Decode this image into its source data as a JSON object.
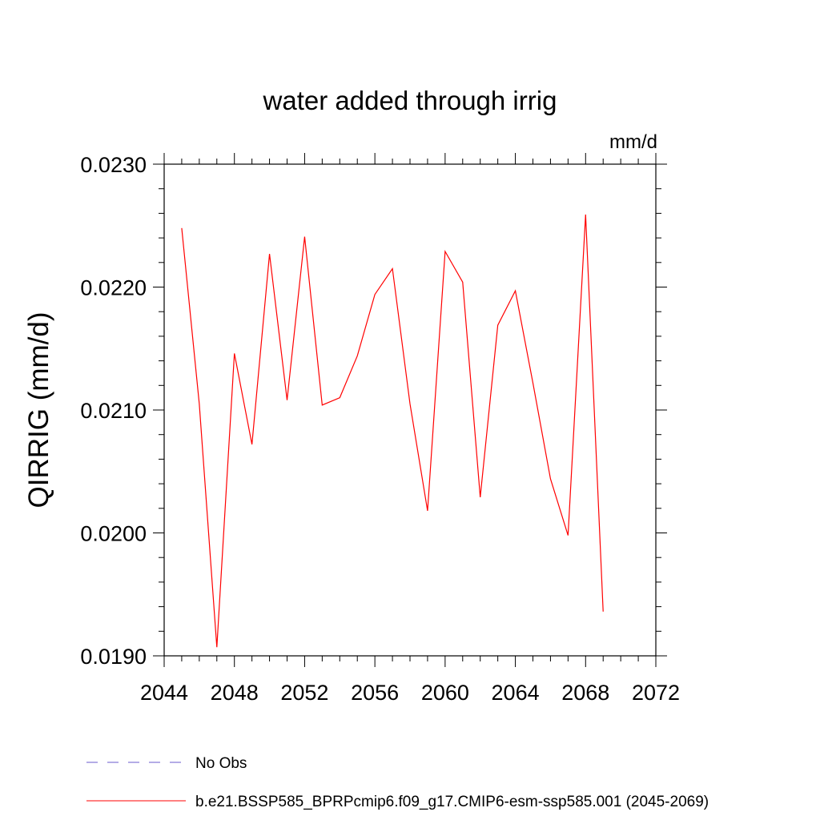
{
  "chart_data": {
    "type": "line",
    "title": "water added through irrig",
    "units_label": "mm/d",
    "xlabel": "",
    "ylabel": "QIRRIG  (mm/d)",
    "xlim": [
      2044,
      2072
    ],
    "ylim": [
      0.019,
      0.023
    ],
    "x_major_ticks": [
      2044,
      2048,
      2052,
      2056,
      2060,
      2064,
      2068,
      2072
    ],
    "x_tick_labels": [
      "2044",
      "2048",
      "2052",
      "2056",
      "2060",
      "2064",
      "2068",
      "2072"
    ],
    "y_major_ticks": [
      0.019,
      0.02,
      0.021,
      0.022,
      0.023
    ],
    "y_tick_labels": [
      "0.0190",
      "0.0200",
      "0.0210",
      "0.0220",
      "0.0230"
    ],
    "y_minor_step": 0.0002,
    "x_minor_step": 1,
    "grid": false,
    "legend_position": "bottom",
    "series": [
      {
        "name": "No Obs",
        "color": "#6a5acd",
        "dash": "dashed",
        "x": [],
        "y": []
      },
      {
        "name": "b.e21.BSSP585_BPRPcmip6.f09_g17.CMIP6-esm-ssp585.001 (2045-2069)",
        "color": "#ff0000",
        "dash": "solid",
        "x": [
          2045,
          2046,
          2047,
          2048,
          2049,
          2050,
          2051,
          2052,
          2053,
          2054,
          2055,
          2056,
          2057,
          2058,
          2059,
          2060,
          2061,
          2062,
          2063,
          2064,
          2065,
          2066,
          2067,
          2068,
          2069
        ],
        "y": [
          0.02248,
          0.02105,
          0.01907,
          0.02146,
          0.02072,
          0.02227,
          0.02108,
          0.02241,
          0.02104,
          0.0211,
          0.02144,
          0.02194,
          0.02215,
          0.02105,
          0.02018,
          0.02229,
          0.02204,
          0.02029,
          0.02169,
          0.02197,
          0.02122,
          0.02044,
          0.01998,
          0.02259,
          0.01936
        ]
      }
    ]
  }
}
